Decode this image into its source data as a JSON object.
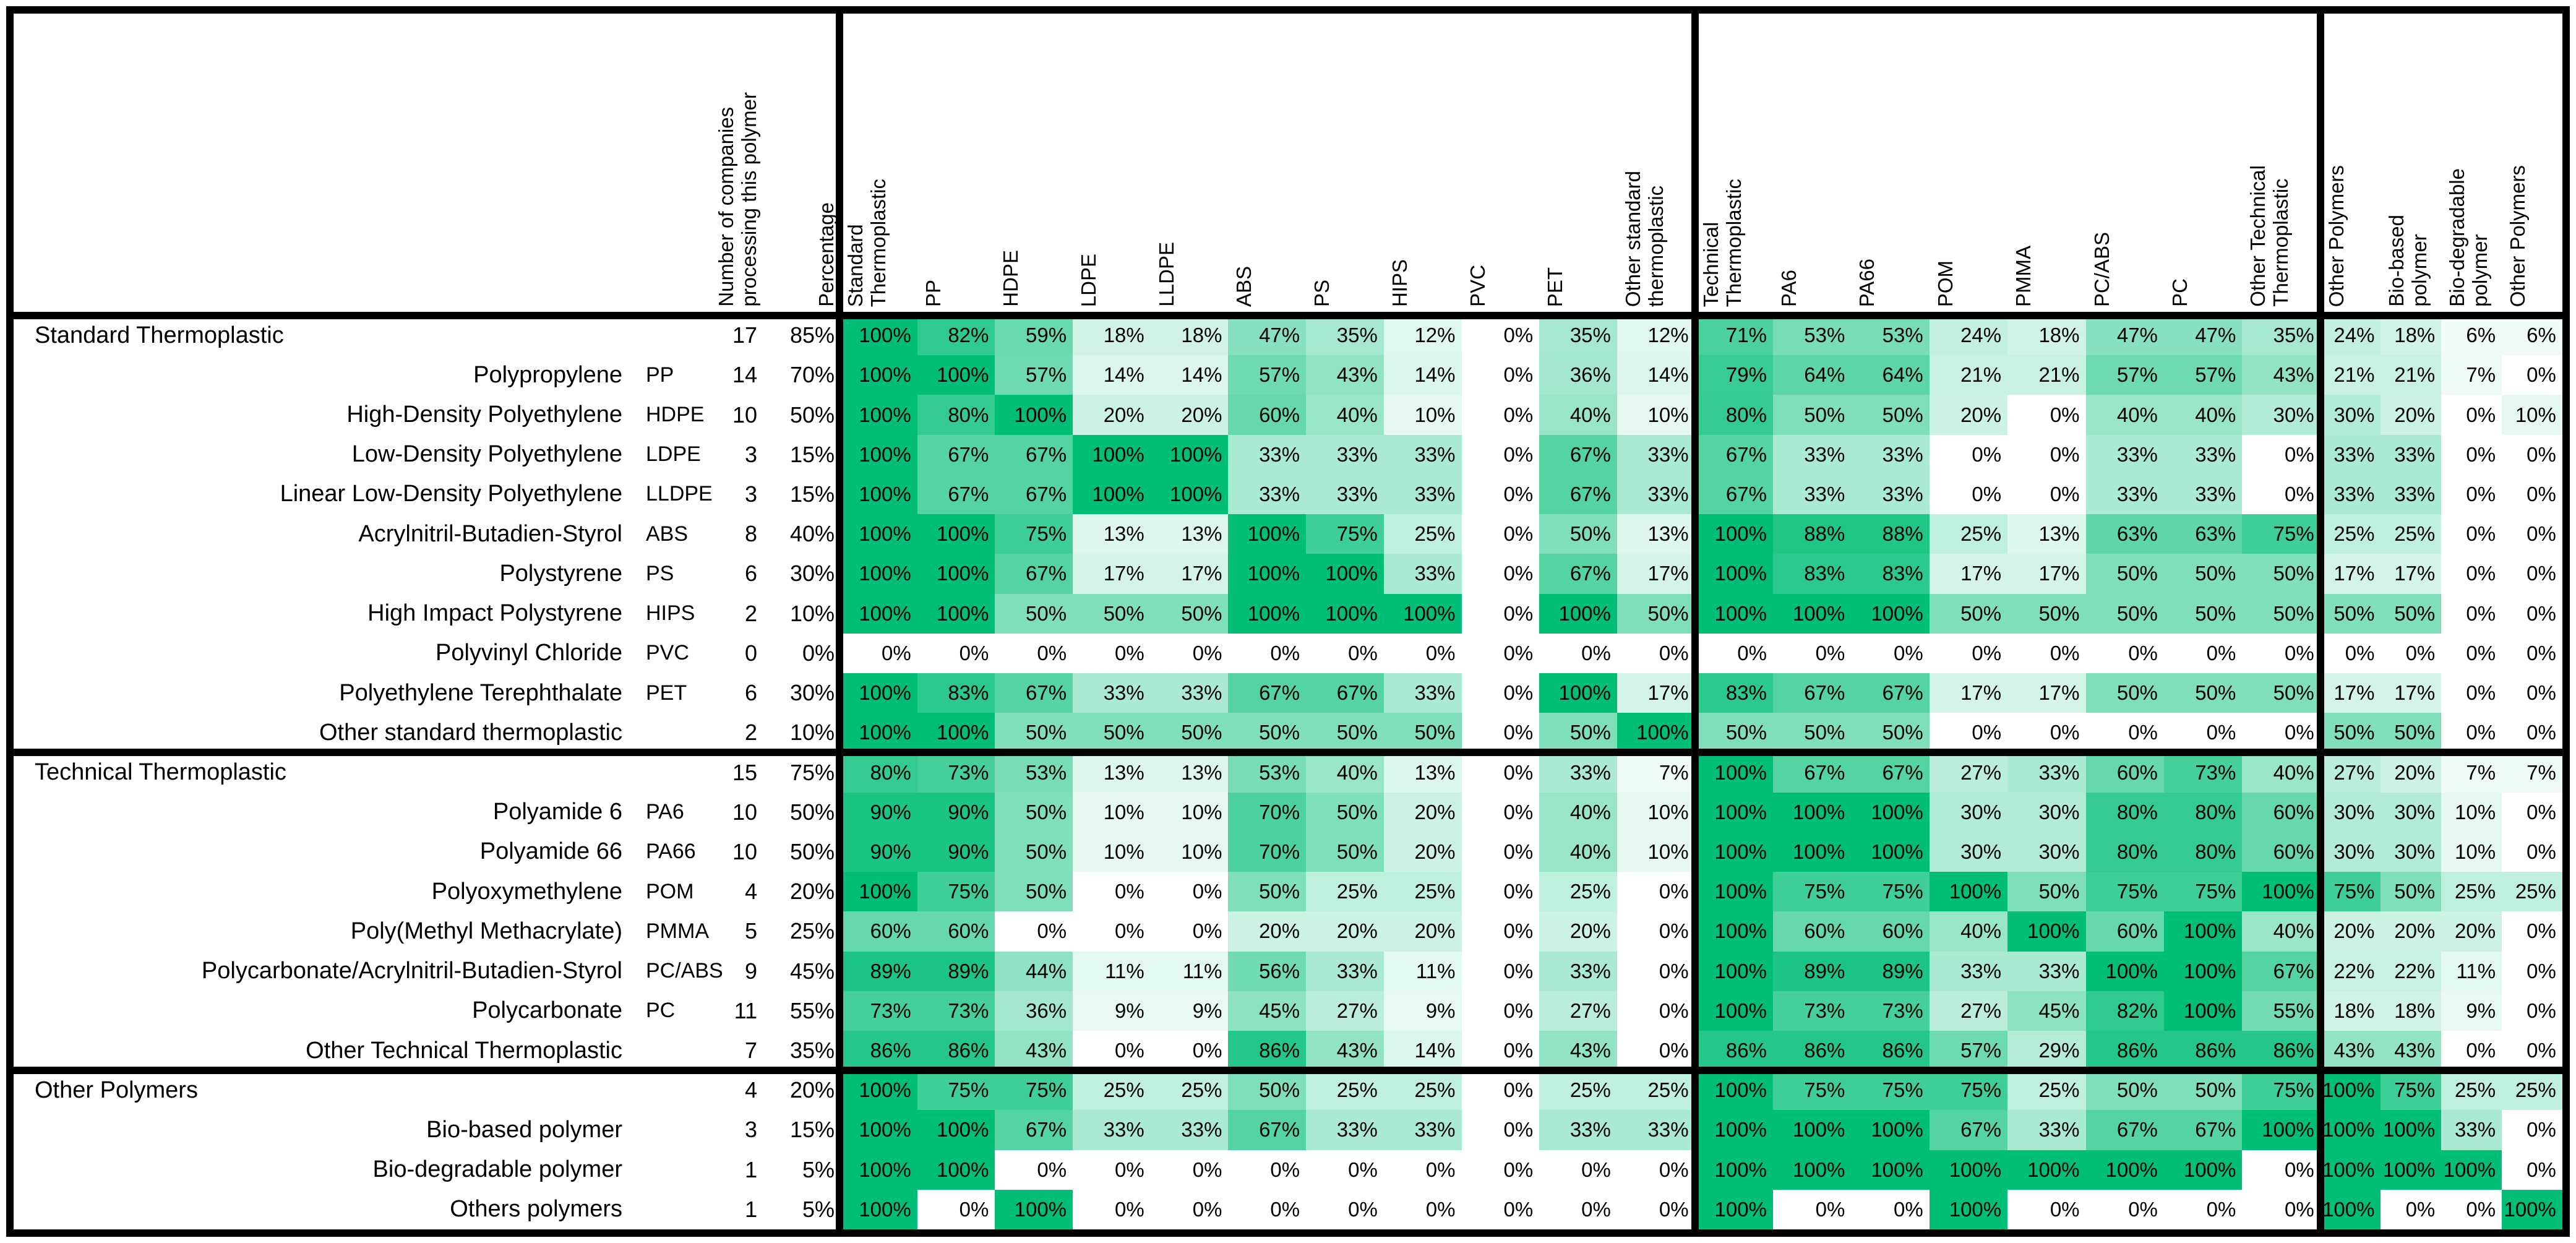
{
  "chart_data": {
    "type": "heatmap",
    "description_visible_text_only": true,
    "heat_color_min": "#FFFFFF",
    "heat_color_max": "#00BE76",
    "legend_position": "none",
    "left_headers": {
      "companies": "Number of companies\nprocessing this polymer",
      "percentage": "Percentage"
    },
    "columns": [
      "Standard\nThermoplastic",
      "PP",
      "HDPE",
      "LDPE",
      "LLDPE",
      "ABS",
      "PS",
      "HIPS",
      "PVC",
      "PET",
      "Other standard\nthermoplastic",
      "Technical\nThermoplastic",
      "PA6",
      "PA66",
      "POM",
      "PMMA",
      "PC/ABS",
      "PC",
      "Other Technical\nThermoplastic",
      "Other Polymers",
      "Bio-based\npolymer",
      "Bio-degradable\npolymer",
      "Other Polymers"
    ],
    "rows": [
      {
        "label": "Standard Thermoplastic",
        "abbr": "",
        "group": true,
        "n": 17,
        "pct": 85,
        "values": [
          100,
          82,
          59,
          18,
          18,
          47,
          35,
          12,
          0,
          35,
          12,
          71,
          53,
          53,
          24,
          18,
          47,
          47,
          35,
          24,
          18,
          6,
          6
        ]
      },
      {
        "label": "Polypropylene",
        "abbr": "PP",
        "group": false,
        "n": 14,
        "pct": 70,
        "values": [
          100,
          100,
          57,
          14,
          14,
          57,
          43,
          14,
          0,
          36,
          14,
          79,
          64,
          64,
          21,
          21,
          57,
          57,
          43,
          21,
          21,
          7,
          0
        ]
      },
      {
        "label": "High-Density Polyethylene",
        "abbr": "HDPE",
        "group": false,
        "n": 10,
        "pct": 50,
        "values": [
          100,
          80,
          100,
          20,
          20,
          60,
          40,
          10,
          0,
          40,
          10,
          80,
          50,
          50,
          20,
          0,
          40,
          40,
          30,
          30,
          20,
          0,
          10
        ]
      },
      {
        "label": "Low-Density Polyethylene",
        "abbr": "LDPE",
        "group": false,
        "n": 3,
        "pct": 15,
        "values": [
          100,
          67,
          67,
          100,
          100,
          33,
          33,
          33,
          0,
          67,
          33,
          67,
          33,
          33,
          0,
          0,
          33,
          33,
          0,
          33,
          33,
          0,
          0
        ]
      },
      {
        "label": "Linear Low-Density Polyethylene",
        "abbr": "LLDPE",
        "group": false,
        "n": 3,
        "pct": 15,
        "values": [
          100,
          67,
          67,
          100,
          100,
          33,
          33,
          33,
          0,
          67,
          33,
          67,
          33,
          33,
          0,
          0,
          33,
          33,
          0,
          33,
          33,
          0,
          0
        ]
      },
      {
        "label": "Acrylnitril-Butadien-Styrol",
        "abbr": "ABS",
        "group": false,
        "n": 8,
        "pct": 40,
        "values": [
          100,
          100,
          75,
          13,
          13,
          100,
          75,
          25,
          0,
          50,
          13,
          100,
          88,
          88,
          25,
          13,
          63,
          63,
          75,
          25,
          25,
          0,
          0
        ]
      },
      {
        "label": "Polystyrene",
        "abbr": "PS",
        "group": false,
        "n": 6,
        "pct": 30,
        "values": [
          100,
          100,
          67,
          17,
          17,
          100,
          100,
          33,
          0,
          67,
          17,
          100,
          83,
          83,
          17,
          17,
          50,
          50,
          50,
          17,
          17,
          0,
          0
        ]
      },
      {
        "label": "High Impact Polystyrene",
        "abbr": "HIPS",
        "group": false,
        "n": 2,
        "pct": 10,
        "values": [
          100,
          100,
          50,
          50,
          50,
          100,
          100,
          100,
          0,
          100,
          50,
          100,
          100,
          100,
          50,
          50,
          50,
          50,
          50,
          50,
          50,
          0,
          0
        ]
      },
      {
        "label": "Polyvinyl Chloride",
        "abbr": "PVC",
        "group": false,
        "n": 0,
        "pct": 0,
        "values": [
          0,
          0,
          0,
          0,
          0,
          0,
          0,
          0,
          0,
          0,
          0,
          0,
          0,
          0,
          0,
          0,
          0,
          0,
          0,
          0,
          0,
          0,
          0
        ]
      },
      {
        "label": "Polyethylene Terephthalate",
        "abbr": "PET",
        "group": false,
        "n": 6,
        "pct": 30,
        "values": [
          100,
          83,
          67,
          33,
          33,
          67,
          67,
          33,
          0,
          100,
          17,
          83,
          67,
          67,
          17,
          17,
          50,
          50,
          50,
          17,
          17,
          0,
          0
        ]
      },
      {
        "label": "Other standard thermoplastic",
        "abbr": "",
        "group": false,
        "n": 2,
        "pct": 10,
        "values": [
          100,
          100,
          50,
          50,
          50,
          50,
          50,
          50,
          0,
          50,
          100,
          50,
          50,
          50,
          0,
          0,
          0,
          0,
          0,
          50,
          50,
          0,
          0
        ]
      },
      {
        "label": "Technical Thermoplastic",
        "abbr": "",
        "group": true,
        "n": 15,
        "pct": 75,
        "values": [
          80,
          73,
          53,
          13,
          13,
          53,
          40,
          13,
          0,
          33,
          7,
          100,
          67,
          67,
          27,
          33,
          60,
          73,
          40,
          27,
          20,
          7,
          7
        ]
      },
      {
        "label": "Polyamide 6",
        "abbr": "PA6",
        "group": false,
        "n": 10,
        "pct": 50,
        "values": [
          90,
          90,
          50,
          10,
          10,
          70,
          50,
          20,
          0,
          40,
          10,
          100,
          100,
          100,
          30,
          30,
          80,
          80,
          60,
          30,
          30,
          10,
          0
        ]
      },
      {
        "label": "Polyamide 66",
        "abbr": "PA66",
        "group": false,
        "n": 10,
        "pct": 50,
        "values": [
          90,
          90,
          50,
          10,
          10,
          70,
          50,
          20,
          0,
          40,
          10,
          100,
          100,
          100,
          30,
          30,
          80,
          80,
          60,
          30,
          30,
          10,
          0
        ]
      },
      {
        "label": "Polyoxymethylene",
        "abbr": "POM",
        "group": false,
        "n": 4,
        "pct": 20,
        "values": [
          100,
          75,
          50,
          0,
          0,
          50,
          25,
          25,
          0,
          25,
          0,
          100,
          75,
          75,
          100,
          50,
          75,
          75,
          100,
          75,
          50,
          25,
          25
        ]
      },
      {
        "label": "Poly(Methyl Methacrylate)",
        "abbr": "PMMA",
        "group": false,
        "n": 5,
        "pct": 25,
        "values": [
          60,
          60,
          0,
          0,
          0,
          20,
          20,
          20,
          0,
          20,
          0,
          100,
          60,
          60,
          40,
          100,
          60,
          100,
          40,
          20,
          20,
          20,
          0
        ]
      },
      {
        "label": "Polycarbonate/Acrylnitril-Butadien-Styrol",
        "abbr": "PC/ABS",
        "group": false,
        "n": 9,
        "pct": 45,
        "values": [
          89,
          89,
          44,
          11,
          11,
          56,
          33,
          11,
          0,
          33,
          0,
          100,
          89,
          89,
          33,
          33,
          100,
          100,
          67,
          22,
          22,
          11,
          0
        ]
      },
      {
        "label": "Polycarbonate",
        "abbr": "PC",
        "group": false,
        "n": 11,
        "pct": 55,
        "values": [
          73,
          73,
          36,
          9,
          9,
          45,
          27,
          9,
          0,
          27,
          0,
          100,
          73,
          73,
          27,
          45,
          82,
          100,
          55,
          18,
          18,
          9,
          0
        ]
      },
      {
        "label": "Other Technical Thermoplastic",
        "abbr": "",
        "group": false,
        "n": 7,
        "pct": 35,
        "values": [
          86,
          86,
          43,
          0,
          0,
          86,
          43,
          14,
          0,
          43,
          0,
          86,
          86,
          86,
          57,
          29,
          86,
          86,
          86,
          43,
          43,
          0,
          0
        ]
      },
      {
        "label": "Other Polymers",
        "abbr": "",
        "group": true,
        "n": 4,
        "pct": 20,
        "values": [
          100,
          75,
          75,
          25,
          25,
          50,
          25,
          25,
          0,
          25,
          25,
          100,
          75,
          75,
          75,
          25,
          50,
          50,
          75,
          100,
          75,
          25,
          25
        ]
      },
      {
        "label": "Bio-based polymer",
        "abbr": "",
        "group": false,
        "n": 3,
        "pct": 15,
        "values": [
          100,
          100,
          67,
          33,
          33,
          67,
          33,
          33,
          0,
          33,
          33,
          100,
          100,
          100,
          67,
          33,
          67,
          67,
          100,
          100,
          100,
          33,
          0
        ]
      },
      {
        "label": "Bio-degradable polymer",
        "abbr": "",
        "group": false,
        "n": 1,
        "pct": 5,
        "values": [
          100,
          100,
          0,
          0,
          0,
          0,
          0,
          0,
          0,
          0,
          0,
          100,
          100,
          100,
          100,
          100,
          100,
          100,
          0,
          100,
          100,
          100,
          0
        ]
      },
      {
        "label": "Others polymers",
        "abbr": "",
        "group": false,
        "n": 1,
        "pct": 5,
        "values": [
          100,
          0,
          100,
          0,
          0,
          0,
          0,
          0,
          0,
          0,
          0,
          100,
          0,
          0,
          100,
          0,
          0,
          0,
          0,
          100,
          0,
          0,
          100
        ]
      }
    ]
  }
}
